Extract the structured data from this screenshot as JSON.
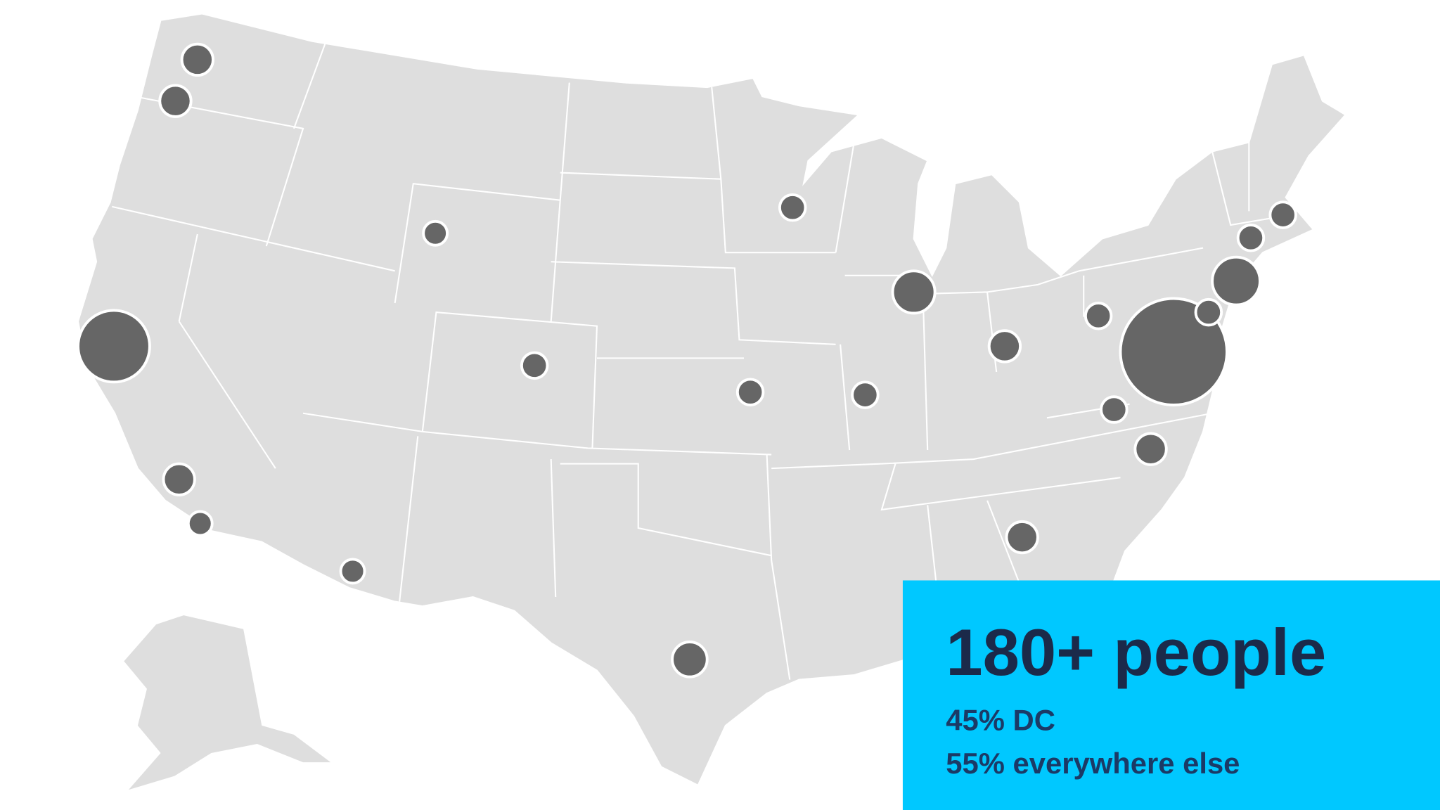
{
  "panel": {
    "headline": "180+ people",
    "lines": [
      "45% DC",
      "55% everywhere else"
    ]
  }
}
